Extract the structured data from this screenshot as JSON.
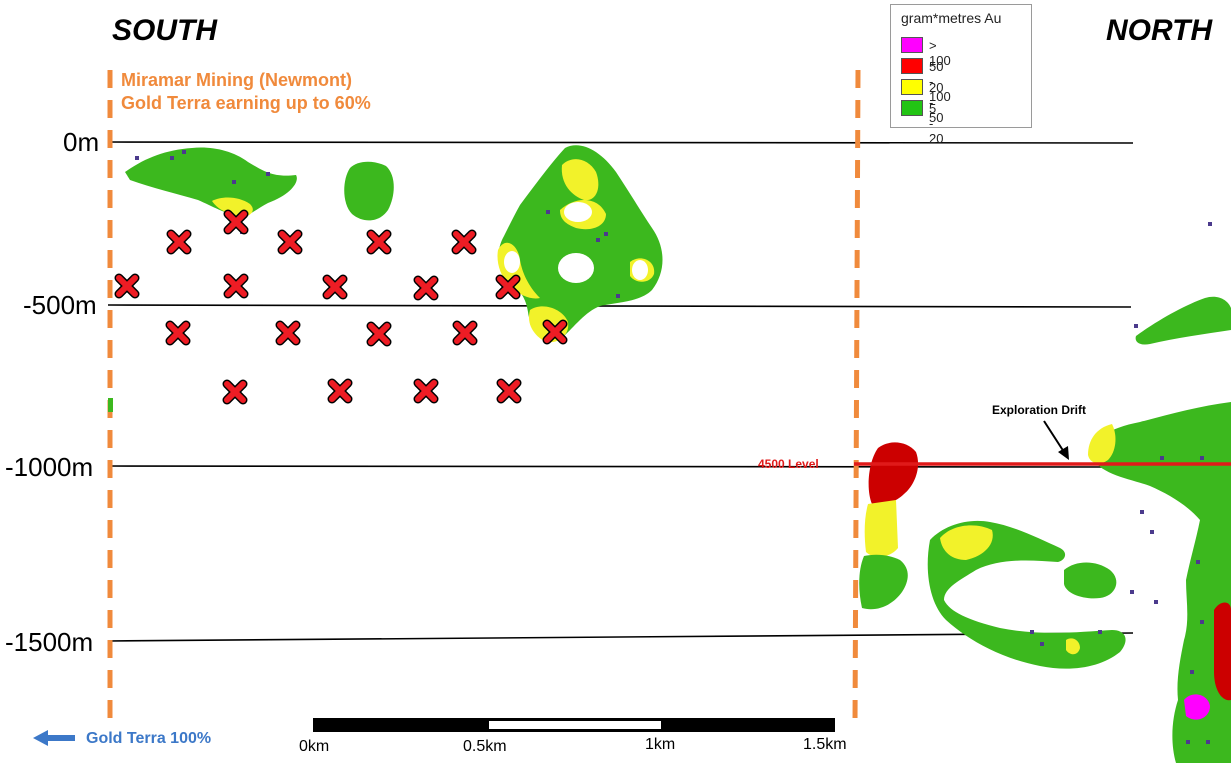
{
  "headers": {
    "south": "SOUTH",
    "north": "NORTH"
  },
  "ownership": {
    "line1": "Miramar Mining (Newmont)",
    "line2": "Gold Terra earning up to 60%",
    "gold_terra": "Gold Terra 100%"
  },
  "depths": [
    "0m",
    "-500m",
    "-1000m",
    "-1500m"
  ],
  "legend": {
    "title": "gram*metres Au",
    "items": [
      {
        "label": "> 100",
        "color": "#ff00ff"
      },
      {
        "label": "50 - 100",
        "color": "#ff0000"
      },
      {
        "label": "20 - 50",
        "color": "#ffff00"
      },
      {
        "label": "5 - 20",
        "color": "#22c414"
      }
    ]
  },
  "scale": {
    "labels": [
      "0km",
      "0.5km",
      "1km",
      "1.5km"
    ]
  },
  "annotations": {
    "drift": "Exploration Drift",
    "level": "4500 Level"
  },
  "colors": {
    "orange": "#f08a3c",
    "green": "#3cb81e",
    "yellow": "#f2f22a",
    "red": "#cc0000",
    "magenta": "#ff00ff",
    "blue": "#3c78c8",
    "drill_x": "#ee1c24"
  },
  "icons": {
    "target": "red-x-target-icon",
    "arrow": "left-arrow-icon"
  }
}
